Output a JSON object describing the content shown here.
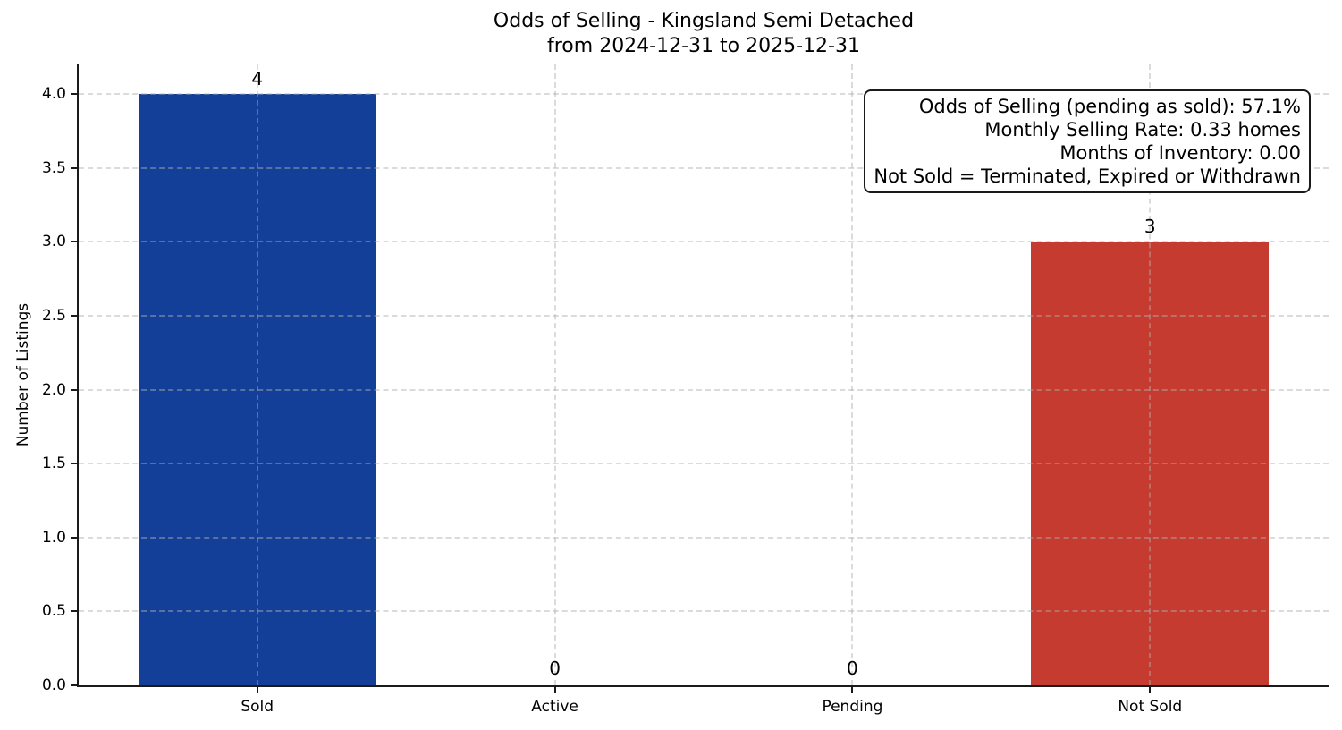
{
  "chart_data": {
    "type": "bar",
    "title": "Odds of Selling - Kingsland Semi Detached",
    "subtitle": "from 2024-12-31 to 2025-12-31",
    "categories": [
      "Sold",
      "Active",
      "Pending",
      "Not Sold"
    ],
    "values": [
      4,
      0,
      0,
      3
    ],
    "bar_value_labels": [
      "4",
      "0",
      "0",
      "3"
    ],
    "bar_colors": {
      "Sold": "#133f99",
      "Active": null,
      "Pending": null,
      "Not Sold": "#c63b2f"
    },
    "xlabel": "",
    "ylabel": "Number of Listings",
    "ylim": [
      0,
      4.2
    ],
    "xlim": [
      -0.6,
      3.6
    ],
    "bar_width_units": 0.8,
    "yticks": [
      0.0,
      0.5,
      1.0,
      1.5,
      2.0,
      2.5,
      3.0,
      3.5,
      4.0
    ],
    "ytick_labels": [
      "0.0",
      "0.5",
      "1.0",
      "1.5",
      "2.0",
      "2.5",
      "3.0",
      "3.5",
      "4.0"
    ],
    "grid": {
      "visible": true,
      "style": "dashed",
      "axes": "both",
      "above_bars": true
    },
    "legend": "none",
    "spine_color": "#1a1a1a",
    "annotation": {
      "position": "top-right",
      "text_align": "right",
      "lines": [
        "Odds of Selling (pending as sold): 57.1%",
        "Monthly Selling Rate: 0.33 homes",
        "Months of Inventory: 0.00",
        "Not Sold = Terminated, Expired or Withdrawn"
      ]
    }
  }
}
